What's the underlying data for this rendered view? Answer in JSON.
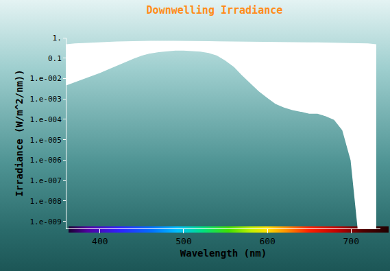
{
  "chart_data": {
    "type": "area",
    "title": "Downwelling Irradiance",
    "x_label": "Wavelength (nm)",
    "y_label": "Irradiance (W/m^2/nm))",
    "x": [
      360,
      370,
      380,
      390,
      400,
      410,
      420,
      430,
      440,
      450,
      460,
      470,
      480,
      490,
      500,
      510,
      520,
      530,
      540,
      550,
      560,
      570,
      580,
      590,
      600,
      610,
      620,
      630,
      640,
      650,
      660,
      670,
      680,
      690,
      700,
      710,
      720,
      730
    ],
    "series": [
      {
        "color": "#ffffff",
        "values": [
          0.005,
          0.007,
          0.01,
          0.014,
          0.02,
          0.03,
          0.045,
          0.07,
          0.1,
          0.14,
          0.18,
          0.21,
          0.23,
          0.25,
          0.25,
          0.24,
          0.22,
          0.19,
          0.14,
          0.08,
          0.04,
          0.015,
          0.006,
          0.0025,
          0.0012,
          0.0006,
          0.0004,
          0.0003,
          0.00025,
          0.0002,
          0.0002,
          0.00015,
          0.0001,
          3e-05,
          1e-06,
          1e-10,
          1e-10,
          1e-10
        ]
      },
      {
        "color": "#ffffff",
        "values": [
          0.45,
          0.5,
          0.52,
          0.55,
          0.58,
          0.6,
          0.62,
          0.63,
          0.65,
          0.66,
          0.66,
          0.67,
          0.67,
          0.66,
          0.66,
          0.65,
          0.65,
          0.64,
          0.63,
          0.62,
          0.62,
          0.61,
          0.6,
          0.6,
          0.59,
          0.58,
          0.58,
          0.57,
          0.57,
          0.56,
          0.56,
          0.55,
          0.55,
          0.54,
          0.53,
          0.52,
          0.5,
          0.45
        ]
      }
    ],
    "xlim": [
      360,
      735
    ],
    "ylim": [
      4.5e-10,
      1
    ],
    "xticks": [
      400,
      500,
      600,
      700
    ],
    "yticks": [
      {
        "value": 1,
        "label": "1."
      },
      {
        "value": 0.1,
        "label": "0.1"
      },
      {
        "value": 0.01,
        "label": "1.e-002"
      },
      {
        "value": 0.001,
        "label": "1.e-003"
      },
      {
        "value": 0.0001,
        "label": "1.e-004"
      },
      {
        "value": 1e-05,
        "label": "1.e-005"
      },
      {
        "value": 1e-06,
        "label": "1.e-006"
      },
      {
        "value": 1e-07,
        "label": "1.e-007"
      },
      {
        "value": 1e-08,
        "label": "1.e-008"
      },
      {
        "value": 1e-09,
        "label": "1.e-009"
      }
    ],
    "log": "y",
    "grid": false
  }
}
